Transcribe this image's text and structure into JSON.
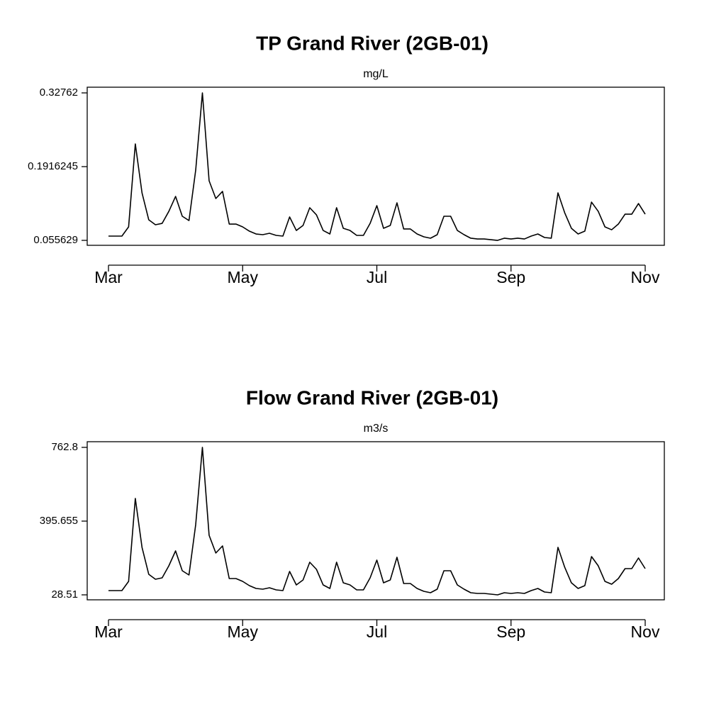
{
  "chart_data": [
    {
      "type": "line",
      "title": "TP Grand River (2GB-01)",
      "subtitle": "mg/L",
      "color": "#000000",
      "categories": [
        "Mar",
        null,
        null,
        null,
        null,
        null,
        null,
        null,
        null,
        null,
        null,
        null,
        null,
        null,
        null,
        null,
        null,
        null,
        null,
        null,
        "May",
        null,
        null,
        null,
        null,
        null,
        null,
        null,
        null,
        null,
        null,
        null,
        null,
        null,
        null,
        null,
        null,
        null,
        null,
        null,
        "Jul",
        null,
        null,
        null,
        null,
        null,
        null,
        null,
        null,
        null,
        null,
        null,
        null,
        null,
        null,
        null,
        null,
        null,
        null,
        null,
        "Sep",
        null,
        null,
        null,
        null,
        null,
        null,
        null,
        null,
        null,
        null,
        null,
        null,
        null,
        null,
        null,
        null,
        null,
        null,
        null,
        "Nov"
      ],
      "values": [
        0.0635,
        0.0635,
        0.0635,
        0.0805,
        0.2335,
        0.1432,
        0.0936,
        0.0844,
        0.087,
        0.1092,
        0.1367,
        0.1001,
        0.0922,
        0.1851,
        0.32762,
        0.1655,
        0.1328,
        0.1459,
        0.0857,
        0.0857,
        0.0805,
        0.0726,
        0.0674,
        0.0661,
        0.0687,
        0.0648,
        0.0635,
        0.0988,
        0.0739,
        0.0831,
        0.1158,
        0.1027,
        0.0739,
        0.0674,
        0.1158,
        0.0779,
        0.0739,
        0.0648,
        0.0648,
        0.087,
        0.1197,
        0.0779,
        0.0831,
        0.1249,
        0.0766,
        0.0766,
        0.0674,
        0.0622,
        0.0596,
        0.0661,
        0.1001,
        0.1001,
        0.0739,
        0.0661,
        0.0596,
        0.0582,
        0.0582,
        0.0569,
        0.055629,
        0.0596,
        0.0582,
        0.0596,
        0.0582,
        0.0635,
        0.0674,
        0.0609,
        0.0596,
        0.1432,
        0.1066,
        0.0779,
        0.0674,
        0.0726,
        0.1262,
        0.1092,
        0.0805,
        0.0752,
        0.0857,
        0.104,
        0.104,
        0.1236,
        0.104
      ],
      "ylim": [
        0.0465,
        0.3381
      ],
      "yticks": [
        0.055629,
        0.1916245,
        0.32762
      ],
      "grid": false
    },
    {
      "type": "line",
      "title": "Flow Grand River (2GB-01)",
      "subtitle": "m3/s",
      "color": "#000000",
      "categories": [
        "Mar",
        null,
        null,
        null,
        null,
        null,
        null,
        null,
        null,
        null,
        null,
        null,
        null,
        null,
        null,
        null,
        null,
        null,
        null,
        null,
        "May",
        null,
        null,
        null,
        null,
        null,
        null,
        null,
        null,
        null,
        null,
        null,
        null,
        null,
        null,
        null,
        null,
        null,
        null,
        null,
        "Jul",
        null,
        null,
        null,
        null,
        null,
        null,
        null,
        null,
        null,
        null,
        null,
        null,
        null,
        null,
        null,
        null,
        null,
        null,
        null,
        "Sep",
        null,
        null,
        null,
        null,
        null,
        null,
        null,
        null,
        null,
        null,
        null,
        null,
        null,
        null,
        null,
        null,
        null,
        null,
        null,
        "Nov"
      ],
      "values": [
        49.7,
        49.7,
        49.7,
        95.6,
        508.6,
        265.0,
        130.9,
        106.2,
        113.2,
        173.2,
        247.4,
        148.5,
        127.4,
        378.0,
        762.8,
        325.0,
        236.8,
        272.1,
        109.7,
        109.7,
        95.6,
        74.4,
        60.3,
        56.8,
        63.8,
        53.2,
        49.7,
        145.0,
        77.9,
        102.6,
        190.9,
        155.6,
        77.9,
        60.3,
        190.9,
        88.5,
        77.9,
        53.2,
        53.2,
        113.2,
        201.5,
        88.5,
        102.6,
        215.6,
        85.0,
        85.0,
        60.3,
        46.2,
        39.1,
        56.8,
        148.5,
        148.5,
        77.9,
        56.8,
        39.1,
        35.6,
        35.6,
        32.0,
        28.51,
        39.1,
        35.6,
        39.1,
        35.6,
        49.7,
        60.3,
        42.6,
        39.1,
        265.0,
        166.2,
        88.5,
        60.3,
        74.4,
        219.1,
        173.2,
        95.6,
        81.5,
        109.7,
        159.1,
        159.1,
        212.1,
        159.1
      ],
      "ylim": [
        3.8,
        791.0
      ],
      "yticks": [
        28.51,
        395.655,
        762.8
      ],
      "grid": false
    }
  ]
}
